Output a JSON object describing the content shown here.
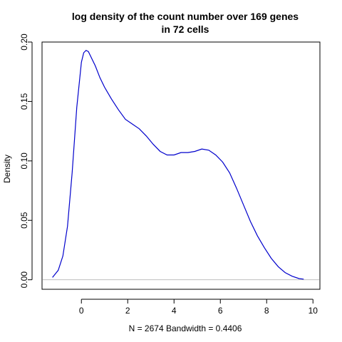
{
  "chart_data": {
    "type": "line",
    "title_lines": [
      "log density of the count number over 169 genes",
      "in 72 cells"
    ],
    "xlabel": "N = 2674   Bandwidth = 0.4406",
    "ylabel": "Density",
    "xlim": [
      -1.7,
      10.3
    ],
    "ylim": [
      -0.008,
      0.2
    ],
    "x_ticks": [
      0,
      2,
      4,
      6,
      8,
      10
    ],
    "y_ticks": [
      0.0,
      0.05,
      0.1,
      0.15,
      0.2
    ],
    "x_tick_labels": [
      "0",
      "2",
      "4",
      "6",
      "8",
      "10"
    ],
    "y_tick_labels": [
      "0.00",
      "0.05",
      "0.10",
      "0.15",
      "0.20"
    ],
    "baseline": 0,
    "line_color": "#0000cc",
    "baseline_color": "#bebebe",
    "series": [
      {
        "x": [
          -1.25,
          -1.0,
          -0.8,
          -0.6,
          -0.4,
          -0.2,
          0.0,
          0.1,
          0.2,
          0.3,
          0.4,
          0.6,
          0.8,
          1.0,
          1.3,
          1.6,
          1.9,
          2.2,
          2.5,
          2.8,
          3.1,
          3.4,
          3.7,
          4.0,
          4.3,
          4.6,
          4.9,
          5.2,
          5.5,
          5.8,
          6.1,
          6.4,
          6.7,
          7.0,
          7.3,
          7.6,
          7.9,
          8.2,
          8.5,
          8.8,
          9.1,
          9.4,
          9.6
        ],
        "y": [
          0.002,
          0.008,
          0.02,
          0.045,
          0.09,
          0.145,
          0.183,
          0.191,
          0.193,
          0.192,
          0.188,
          0.18,
          0.17,
          0.162,
          0.152,
          0.143,
          0.135,
          0.131,
          0.127,
          0.121,
          0.114,
          0.108,
          0.105,
          0.105,
          0.107,
          0.107,
          0.108,
          0.11,
          0.109,
          0.105,
          0.099,
          0.09,
          0.077,
          0.063,
          0.049,
          0.037,
          0.027,
          0.018,
          0.011,
          0.006,
          0.003,
          0.001,
          0.0005
        ]
      }
    ]
  }
}
